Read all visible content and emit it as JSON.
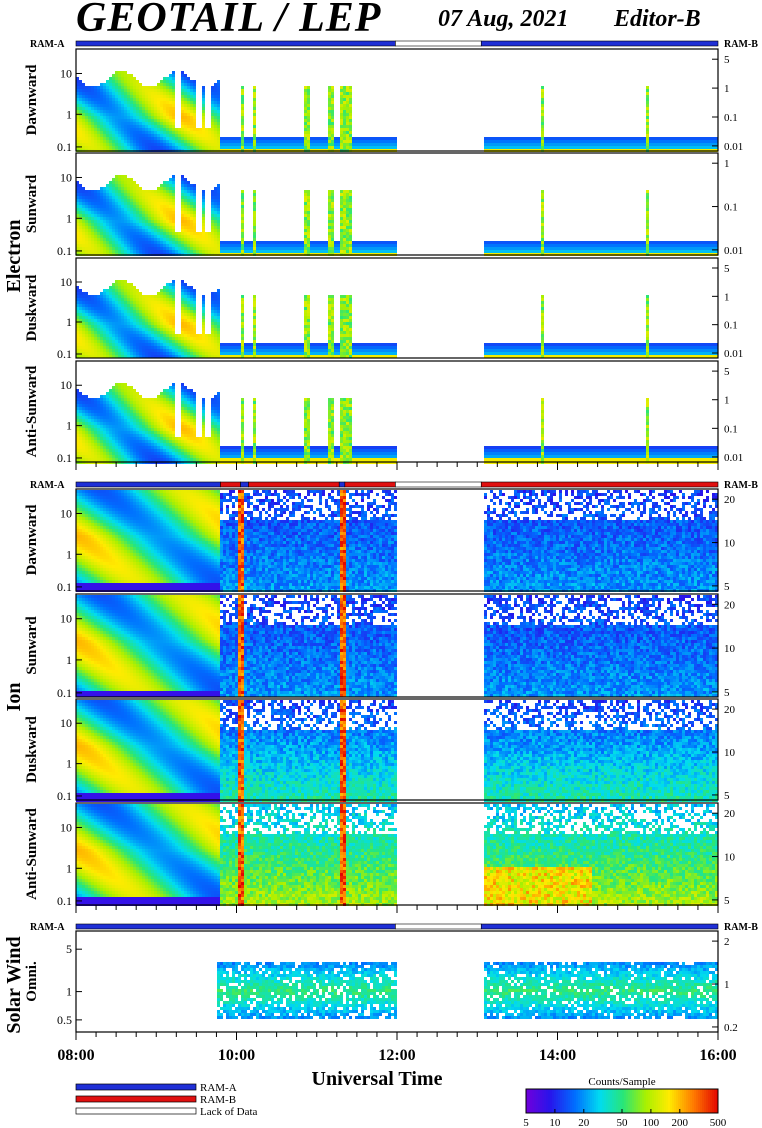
{
  "header": {
    "title": "GEOTAIL / LEP",
    "date": "07 Aug, 2021",
    "editor": "Editor-B"
  },
  "legend": {
    "ram_a": "RAM-A",
    "ram_b": "RAM-B",
    "lack": "Lack of Data",
    "colorbar_title": "Counts/Sample",
    "colorbar_ticks": [
      "5",
      "10",
      "20",
      "50",
      "100",
      "200",
      "500"
    ]
  },
  "colors": {
    "ram_a": "#1f2fd6",
    "ram_b": "#e01010",
    "lack": "#ffffff"
  },
  "chart_data": {
    "type": "heatmap",
    "xlabel": "Universal Time",
    "x_ticks": [
      "08:00",
      "10:00",
      "12:00",
      "14:00",
      "16:00"
    ],
    "x_range_hours": [
      8,
      16
    ],
    "data_gaps_hours": [
      [
        11.98,
        13.05
      ]
    ],
    "groups": [
      {
        "name": "Electron",
        "panels": [
          {
            "label": "Dawnward",
            "left_ticks": [
              "10",
              "1",
              "0.1"
            ],
            "right_ticks": [
              "5",
              "1",
              "0.1",
              "0.01"
            ]
          },
          {
            "label": "Sunward",
            "left_ticks": [
              "10",
              "1",
              "0.1"
            ],
            "right_ticks": [
              "1",
              "0.1",
              "0.01"
            ]
          },
          {
            "label": "Duskward",
            "left_ticks": [
              "10",
              "1",
              "0.1"
            ],
            "right_ticks": [
              "5",
              "1",
              "0.1",
              "0.01"
            ]
          },
          {
            "label": "Anti-Sunward",
            "left_ticks": [
              "10",
              "1",
              "0.1"
            ],
            "right_ticks": [
              "5",
              "1",
              "0.1",
              "0.01"
            ]
          }
        ],
        "ram_segments": [
          [
            "a",
            8.0,
            11.98
          ],
          [
            "gap",
            11.98,
            13.05
          ],
          [
            "a",
            13.05,
            16.0
          ]
        ]
      },
      {
        "name": "Ion",
        "panels": [
          {
            "label": "Dawnward",
            "left_ticks": [
              "10",
              "1",
              "0.1"
            ],
            "right_ticks": [
              "20",
              "10",
              "5"
            ]
          },
          {
            "label": "Sunward",
            "left_ticks": [
              "10",
              "1",
              "0.1"
            ],
            "right_ticks": [
              "20",
              "10",
              "5"
            ]
          },
          {
            "label": "Duskward",
            "left_ticks": [
              "10",
              "1",
              "0.1"
            ],
            "right_ticks": [
              "20",
              "10",
              "5"
            ]
          },
          {
            "label": "Anti-Sunward",
            "left_ticks": [
              "10",
              "1",
              "0.1"
            ],
            "right_ticks": [
              "20",
              "10",
              "5"
            ]
          }
        ],
        "ram_segments": [
          [
            "a",
            8.0,
            9.8
          ],
          [
            "b",
            9.8,
            10.05
          ],
          [
            "a",
            10.05,
            10.15
          ],
          [
            "b",
            10.15,
            11.28
          ],
          [
            "a",
            11.28,
            11.35
          ],
          [
            "b",
            11.35,
            11.98
          ],
          [
            "gap",
            11.98,
            13.05
          ],
          [
            "b",
            13.05,
            16.0
          ]
        ]
      },
      {
        "name": "Solar Wind",
        "panels": [
          {
            "label": "Omni.",
            "left_ticks": [
              "5",
              "1",
              "0.5"
            ],
            "right_ticks": [
              "2",
              "1",
              "0.2"
            ]
          }
        ],
        "ram_segments": [
          [
            "a",
            8.0,
            11.98
          ],
          [
            "gap",
            11.98,
            13.05
          ],
          [
            "a",
            13.05,
            16.0
          ]
        ]
      }
    ]
  }
}
